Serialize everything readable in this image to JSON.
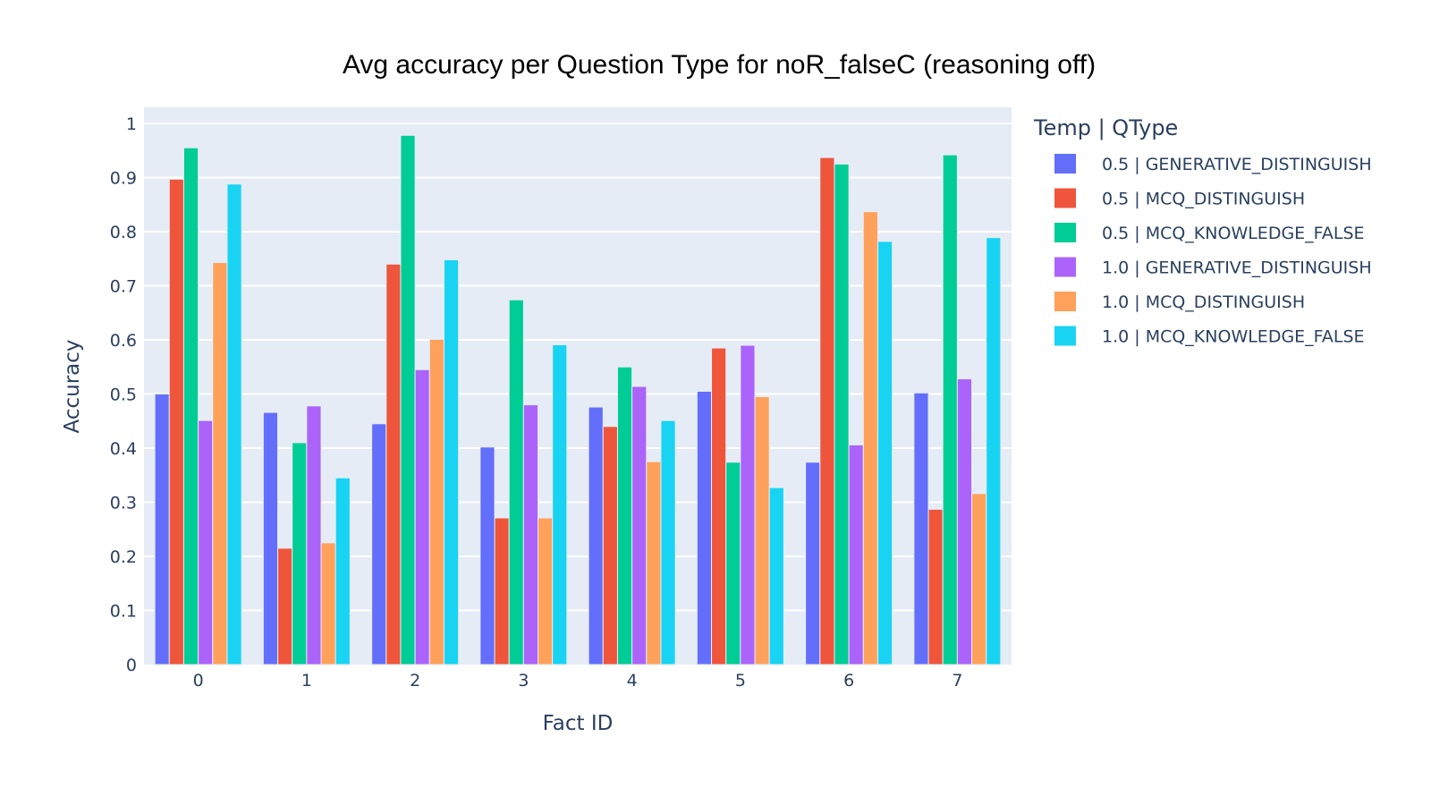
{
  "chart_data": {
    "type": "bar",
    "title": "Avg accuracy per Question Type for noR_falseC (reasoning off)",
    "xlabel": "Fact ID",
    "ylabel": "Accuracy",
    "ylim": [
      0,
      1.03
    ],
    "yticks": [
      0,
      0.1,
      0.2,
      0.3,
      0.4,
      0.5,
      0.6,
      0.7,
      0.8,
      0.9,
      1
    ],
    "ytick_labels": [
      "0",
      "0.1",
      "0.2",
      "0.3",
      "0.4",
      "0.5",
      "0.6",
      "0.7",
      "0.8",
      "0.9",
      "1"
    ],
    "categories": [
      "0",
      "1",
      "2",
      "3",
      "4",
      "5",
      "6",
      "7"
    ],
    "grid": true,
    "legend_title": "Temp | QType",
    "legend_position": "right",
    "series": [
      {
        "name": "0.5 | GENERATIVE_DISTINGUISH",
        "color": "#636efa",
        "values": [
          0.5,
          0.466,
          0.445,
          0.402,
          0.476,
          0.505,
          0.374,
          0.502
        ]
      },
      {
        "name": "0.5 | MCQ_DISTINGUISH",
        "color": "#ef553b",
        "values": [
          0.897,
          0.215,
          0.74,
          0.271,
          0.44,
          0.585,
          0.937,
          0.287
        ]
      },
      {
        "name": "0.5 | MCQ_KNOWLEDGE_FALSE",
        "color": "#00cc96",
        "values": [
          0.955,
          0.41,
          0.978,
          0.674,
          0.55,
          0.374,
          0.925,
          0.942
        ]
      },
      {
        "name": "1.0 | GENERATIVE_DISTINGUISH",
        "color": "#ab63fa",
        "values": [
          0.451,
          0.478,
          0.545,
          0.48,
          0.514,
          0.59,
          0.406,
          0.528
        ]
      },
      {
        "name": "1.0 | MCQ_DISTINGUISH",
        "color": "#ffa15a",
        "values": [
          0.743,
          0.225,
          0.601,
          0.271,
          0.375,
          0.495,
          0.837,
          0.316
        ]
      },
      {
        "name": "1.0 | MCQ_KNOWLEDGE_FALSE",
        "color": "#19d3f3",
        "values": [
          0.888,
          0.345,
          0.748,
          0.591,
          0.451,
          0.327,
          0.782,
          0.789
        ]
      }
    ]
  }
}
